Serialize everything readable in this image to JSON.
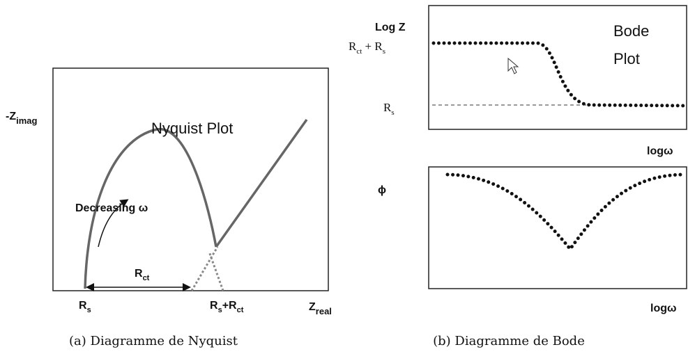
{
  "nyquist": {
    "title": "Nyquist Plot",
    "y_label": {
      "main": "-Z",
      "sub": "imag"
    },
    "x_label": {
      "main": "Z",
      "sub": "real"
    },
    "annotation": "Decreasing ω",
    "rct_label": {
      "main": "R",
      "sub": "ct"
    },
    "rs_label": {
      "main": "R",
      "sub": "s"
    },
    "rs_rct_label": {
      "main1": "R",
      "sub1": "s",
      "main2": "+R",
      "sub2": "ct"
    },
    "caption": "(a) Diagramme de Nyquist"
  },
  "bode": {
    "title_lines": [
      "Bode",
      "Plot"
    ],
    "y_label": "Log Z",
    "high_label": {
      "main1": "R",
      "sub1": "ct",
      "main2": " + R",
      "sub2": "s"
    },
    "low_label": {
      "main": "R",
      "sub": "s"
    },
    "x_label_top": "logω",
    "phase_label": "ϕ",
    "x_label_bottom": "logω",
    "caption": "(b) Diagramme de Bode"
  }
}
